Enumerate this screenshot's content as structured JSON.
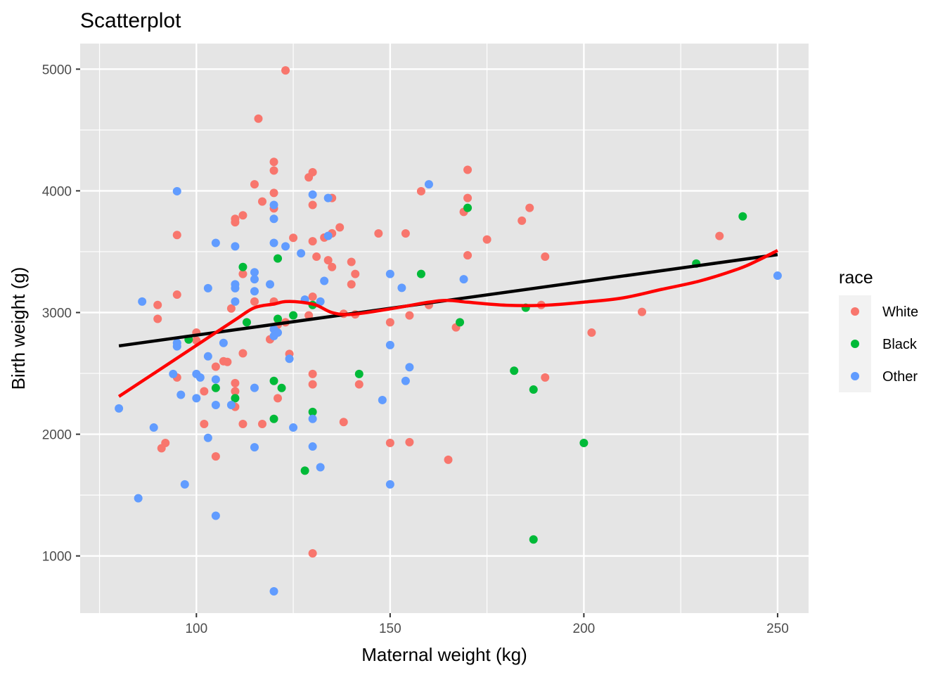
{
  "chart_data": {
    "type": "scatter",
    "title": "Scatterplot",
    "xlabel": "Maternal weight (kg)",
    "ylabel": "Birth weight (g)",
    "xlim": [
      70,
      258
    ],
    "ylim": [
      530,
      5210
    ],
    "x_ticks": [
      100,
      150,
      200,
      250
    ],
    "y_ticks": [
      1000,
      2000,
      3000,
      4000,
      5000
    ],
    "grid": true,
    "legend": {
      "title": "race",
      "position": "right",
      "entries": [
        "White",
        "Black",
        "Other"
      ]
    },
    "colors": {
      "White": "#f8766d",
      "Black": "#00ba38",
      "Other": "#619cff",
      "linear_fit": "#000000",
      "smooth_fit": "#ff0000",
      "panel_bg": "#e5e5e5",
      "grid": "#ffffff"
    },
    "series": [
      {
        "name": "White",
        "points": [
          [
            123,
            4990
          ],
          [
            116,
            4593
          ],
          [
            120,
            4238
          ],
          [
            120,
            4167
          ],
          [
            130,
            4153
          ],
          [
            129,
            4111
          ],
          [
            115,
            4054
          ],
          [
            120,
            3983
          ],
          [
            135,
            3941
          ],
          [
            117,
            3912
          ],
          [
            130,
            3884
          ],
          [
            120,
            3856
          ],
          [
            112,
            3799
          ],
          [
            110,
            3770
          ],
          [
            110,
            3742
          ],
          [
            137,
            3700
          ],
          [
            95,
            3637
          ],
          [
            125,
            3614
          ],
          [
            130,
            3586
          ],
          [
            135,
            3651
          ],
          [
            133,
            3616
          ],
          [
            131,
            3459
          ],
          [
            134,
            3430
          ],
          [
            140,
            3416
          ],
          [
            135,
            3374
          ],
          [
            112,
            3317
          ],
          [
            141,
            3317
          ],
          [
            140,
            3232
          ],
          [
            95,
            3147
          ],
          [
            120,
            3090
          ],
          [
            115,
            3090
          ],
          [
            90,
            3062
          ],
          [
            109,
            3033
          ],
          [
            130,
            3130
          ],
          [
            129,
            2976
          ],
          [
            138,
            2990
          ],
          [
            90,
            2948
          ],
          [
            141,
            2985
          ],
          [
            123,
            2920
          ],
          [
            121,
            2900
          ],
          [
            100,
            2835
          ],
          [
            100,
            2770
          ],
          [
            119,
            2780
          ],
          [
            112,
            2665
          ],
          [
            124,
            2660
          ],
          [
            107,
            2600
          ],
          [
            108,
            2594
          ],
          [
            105,
            2555
          ],
          [
            95,
            2466
          ],
          [
            130,
            2495
          ],
          [
            110,
            2420
          ],
          [
            130,
            2410
          ],
          [
            110,
            2353
          ],
          [
            102,
            2353
          ],
          [
            121,
            2296
          ],
          [
            110,
            2225
          ],
          [
            142,
            2410
          ],
          [
            138,
            2100
          ],
          [
            102,
            2084
          ],
          [
            112,
            2084
          ],
          [
            117,
            2084
          ],
          [
            92,
            1928
          ],
          [
            91,
            1885
          ],
          [
            105,
            1818
          ],
          [
            130,
            1021
          ],
          [
            147,
            3650
          ],
          [
            154,
            3650
          ],
          [
            158,
            3997
          ],
          [
            170,
            4173
          ],
          [
            170,
            3941
          ],
          [
            169,
            3827
          ],
          [
            186,
            3860
          ],
          [
            184,
            3755
          ],
          [
            175,
            3600
          ],
          [
            170,
            3470
          ],
          [
            190,
            3459
          ],
          [
            189,
            3062
          ],
          [
            150,
            2920
          ],
          [
            155,
            2976
          ],
          [
            160,
            3062
          ],
          [
            167,
            2878
          ],
          [
            190,
            2466
          ],
          [
            150,
            1928
          ],
          [
            155,
            1935
          ],
          [
            165,
            1790
          ],
          [
            202,
            2835
          ],
          [
            215,
            3005
          ],
          [
            235,
            3629
          ]
        ]
      },
      {
        "name": "Black",
        "points": [
          [
            241,
            3790
          ],
          [
            229,
            3402
          ],
          [
            170,
            3860
          ],
          [
            158,
            3317
          ],
          [
            112,
            3374
          ],
          [
            121,
            3444
          ],
          [
            125,
            2977
          ],
          [
            121,
            2948
          ],
          [
            113,
            2920
          ],
          [
            130,
            3062
          ],
          [
            98,
            2778
          ],
          [
            168,
            2920
          ],
          [
            185,
            3040
          ],
          [
            142,
            2495
          ],
          [
            182,
            2522
          ],
          [
            187,
            2367
          ],
          [
            120,
            2438
          ],
          [
            105,
            2380
          ],
          [
            122,
            2380
          ],
          [
            110,
            2296
          ],
          [
            130,
            2183
          ],
          [
            120,
            2126
          ],
          [
            200,
            1928
          ],
          [
            128,
            1701
          ],
          [
            187,
            1135
          ]
        ]
      },
      {
        "name": "Other",
        "points": [
          [
            95,
            3997
          ],
          [
            160,
            4054
          ],
          [
            130,
            3969
          ],
          [
            134,
            3941
          ],
          [
            120,
            3884
          ],
          [
            120,
            3770
          ],
          [
            134,
            3630
          ],
          [
            105,
            3572
          ],
          [
            120,
            3572
          ],
          [
            110,
            3544
          ],
          [
            123,
            3544
          ],
          [
            127,
            3487
          ],
          [
            115,
            3331
          ],
          [
            150,
            3317
          ],
          [
            115,
            3274
          ],
          [
            133,
            3260
          ],
          [
            169,
            3274
          ],
          [
            110,
            3232
          ],
          [
            110,
            3200
          ],
          [
            103,
            3200
          ],
          [
            119,
            3232
          ],
          [
            115,
            3175
          ],
          [
            153,
            3203
          ],
          [
            128,
            3106
          ],
          [
            132,
            3090
          ],
          [
            86,
            3090
          ],
          [
            110,
            3090
          ],
          [
            120,
            2863
          ],
          [
            121,
            2835
          ],
          [
            120,
            2807
          ],
          [
            107,
            2750
          ],
          [
            95,
            2750
          ],
          [
            95,
            2722
          ],
          [
            103,
            2640
          ],
          [
            124,
            2620
          ],
          [
            150,
            2733
          ],
          [
            155,
            2551
          ],
          [
            94,
            2495
          ],
          [
            100,
            2495
          ],
          [
            101,
            2466
          ],
          [
            105,
            2450
          ],
          [
            154,
            2438
          ],
          [
            115,
            2381
          ],
          [
            96,
            2324
          ],
          [
            100,
            2296
          ],
          [
            105,
            2240
          ],
          [
            109,
            2240
          ],
          [
            148,
            2281
          ],
          [
            80,
            2212
          ],
          [
            130,
            2126
          ],
          [
            125,
            2055
          ],
          [
            89,
            2055
          ],
          [
            103,
            1970
          ],
          [
            115,
            1893
          ],
          [
            130,
            1899
          ],
          [
            132,
            1729
          ],
          [
            97,
            1588
          ],
          [
            150,
            1588
          ],
          [
            85,
            1474
          ],
          [
            105,
            1330
          ],
          [
            120,
            709
          ],
          [
            250,
            3303
          ]
        ]
      }
    ],
    "linear_fit": {
      "x": [
        80,
        250
      ],
      "y": [
        2726,
        3476
      ]
    },
    "smooth_fit": {
      "x": [
        80,
        90,
        100,
        110,
        115,
        120,
        123,
        127,
        131,
        135,
        140,
        150,
        160,
        165,
        170,
        180,
        190,
        200,
        210,
        220,
        230,
        240,
        245,
        250
      ],
      "y": [
        2310,
        2520,
        2730,
        2940,
        3040,
        3070,
        3090,
        3085,
        3060,
        3000,
        2985,
        3030,
        3085,
        3100,
        3085,
        3060,
        3060,
        3085,
        3120,
        3190,
        3260,
        3360,
        3430,
        3510
      ]
    }
  }
}
